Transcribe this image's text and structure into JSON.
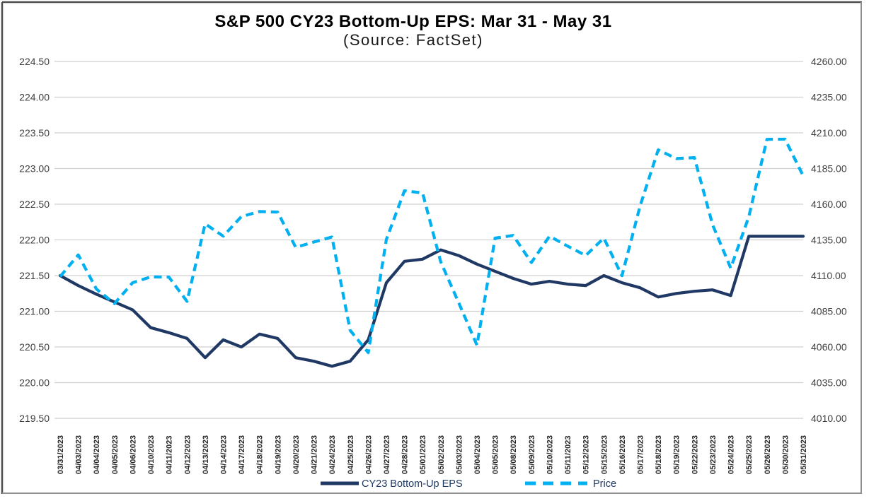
{
  "title": "S&P 500 CY23 Bottom-Up EPS: Mar 31 - May 31",
  "subtitle": "(Source: FactSet)",
  "colors": {
    "eps_line": "#1F3864",
    "price_line": "#00B0F0",
    "grid": "#D0CECE",
    "axis_text": "#404040",
    "date_text": "#262626",
    "legend_text": "#1F3864",
    "frame_dark": "#4d4d4d",
    "frame_light": "#8f8f8f",
    "background": "#FFFFFF"
  },
  "legend": [
    {
      "label": "CY23 Bottom-Up EPS",
      "style": "solid",
      "color": "#1F3864"
    },
    {
      "label": "Price",
      "style": "dashed",
      "color": "#00B0F0"
    }
  ],
  "chart_data": {
    "type": "line",
    "title": "S&P 500 CY23 Bottom-Up EPS: Mar 31 - May 31",
    "subtitle": "(Source: FactSet)",
    "grid": true,
    "legend_position": "bottom",
    "categories": [
      "03/31/2023",
      "04/03/2023",
      "04/04/2023",
      "04/05/2023",
      "04/06/2023",
      "04/10/2023",
      "04/11/2023",
      "04/12/2023",
      "04/13/2023",
      "04/14/2023",
      "04/17/2023",
      "04/18/2023",
      "04/19/2023",
      "04/20/2023",
      "04/21/2023",
      "04/24/2023",
      "04/25/2023",
      "04/26/2023",
      "04/27/2023",
      "04/28/2023",
      "05/01/2023",
      "05/02/2023",
      "05/03/2023",
      "05/04/2023",
      "05/05/2023",
      "05/08/2023",
      "05/09/2023",
      "05/10/2023",
      "05/11/2023",
      "05/12/2023",
      "05/15/2023",
      "05/16/2023",
      "05/17/2023",
      "05/18/2023",
      "05/19/2023",
      "05/22/2023",
      "05/23/2023",
      "05/24/2023",
      "05/25/2023",
      "05/26/2023",
      "05/30/2023",
      "05/31/2023"
    ],
    "series": [
      {
        "name": "CY23 Bottom-Up EPS",
        "axis": "left",
        "style": "solid",
        "color": "#1F3864",
        "values": [
          221.5,
          221.36,
          221.24,
          221.13,
          221.02,
          220.77,
          220.7,
          220.62,
          220.35,
          220.6,
          220.5,
          220.68,
          220.62,
          220.35,
          220.3,
          220.23,
          220.3,
          220.6,
          221.4,
          221.7,
          221.73,
          221.86,
          221.78,
          221.66,
          221.56,
          221.46,
          221.38,
          221.42,
          221.38,
          221.36,
          221.5,
          221.4,
          221.33,
          221.2,
          221.25,
          221.28,
          221.3,
          221.22,
          222.05,
          222.05,
          222.05,
          222.05
        ]
      },
      {
        "name": "Price",
        "axis": "right",
        "style": "dashed",
        "color": "#00B0F0",
        "values": [
          4109.31,
          4124.51,
          4100.6,
          4090.38,
          4105.02,
          4109.11,
          4108.94,
          4091.95,
          4146.22,
          4137.64,
          4151.32,
          4154.87,
          4154.52,
          4129.79,
          4133.52,
          4137.04,
          4071.63,
          4055.99,
          4135.35,
          4169.48,
          4167.87,
          4119.58,
          4090.75,
          4061.22,
          4136.25,
          4138.12,
          4119.17,
          4137.64,
          4130.62,
          4124.08,
          4136.28,
          4109.9,
          4158.77,
          4198.05,
          4191.98,
          4192.63,
          4145.58,
          4115.24,
          4151.28,
          4205.45,
          4205.52,
          4179.83
        ]
      }
    ],
    "left_axis": {
      "min": 219.5,
      "max": 224.5,
      "step": 0.5,
      "ticks": [
        "224.50",
        "224.00",
        "223.50",
        "223.00",
        "222.50",
        "222.00",
        "221.50",
        "221.00",
        "220.50",
        "220.00",
        "219.50"
      ]
    },
    "right_axis": {
      "min": 4010,
      "max": 4260,
      "step": 25,
      "ticks": [
        "4260.00",
        "4235.00",
        "4210.00",
        "4185.00",
        "4160.00",
        "4135.00",
        "4110.00",
        "4085.00",
        "4060.00",
        "4035.00",
        "4010.00"
      ]
    }
  }
}
